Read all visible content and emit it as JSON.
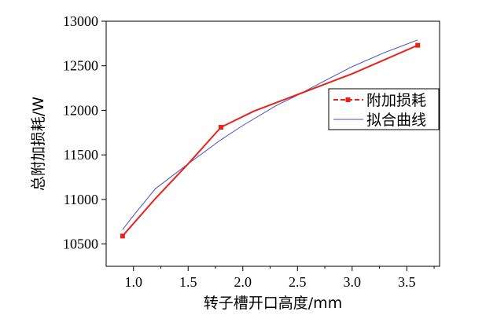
{
  "chart_data": {
    "type": "line",
    "title": "",
    "xlabel": "转子槽开口高度/mm",
    "ylabel": "总附加损耗/W",
    "xlim": [
      0.75,
      3.8
    ],
    "ylim": [
      10250,
      13000
    ],
    "x_ticks": [
      1.0,
      1.5,
      2.0,
      2.5,
      3.0,
      3.5
    ],
    "x_tick_labels": [
      "1.0",
      "1.5",
      "2.0",
      "2.5",
      "3.0",
      "3.5"
    ],
    "y_ticks": [
      10500,
      11000,
      11500,
      12000,
      12500,
      13000
    ],
    "y_tick_labels": [
      "10500",
      "11000",
      "11500",
      "12000",
      "12500",
      "13000"
    ],
    "grid": false,
    "legend_position": "top-right",
    "series": [
      {
        "name": "附加损耗",
        "color": "#e8231c",
        "marker": "square",
        "x": [
          0.9,
          1.8,
          3.6
        ],
        "y": [
          10590,
          11810,
          12730
        ],
        "marker_x": [
          0.9,
          1.8,
          3.6
        ],
        "marker_y": [
          10590,
          11810,
          12730
        ],
        "curve_x": [
          0.9,
          1.2,
          1.5,
          1.8,
          2.1,
          2.4,
          2.7,
          3.0,
          3.3,
          3.6
        ],
        "curve_y": [
          10590,
          11010,
          11400,
          11810,
          11990,
          12130,
          12270,
          12410,
          12570,
          12730
        ]
      },
      {
        "name": "拟合曲线",
        "color": "#4a4fc4",
        "marker": "none",
        "x": [
          0.9,
          1.0,
          1.2,
          1.5,
          1.8,
          2.0,
          2.3,
          2.5,
          2.7,
          3.0,
          3.3,
          3.6
        ],
        "y": [
          10660,
          10820,
          11120,
          11400,
          11670,
          11830,
          12050,
          12170,
          12300,
          12490,
          12650,
          12790
        ]
      }
    ]
  }
}
